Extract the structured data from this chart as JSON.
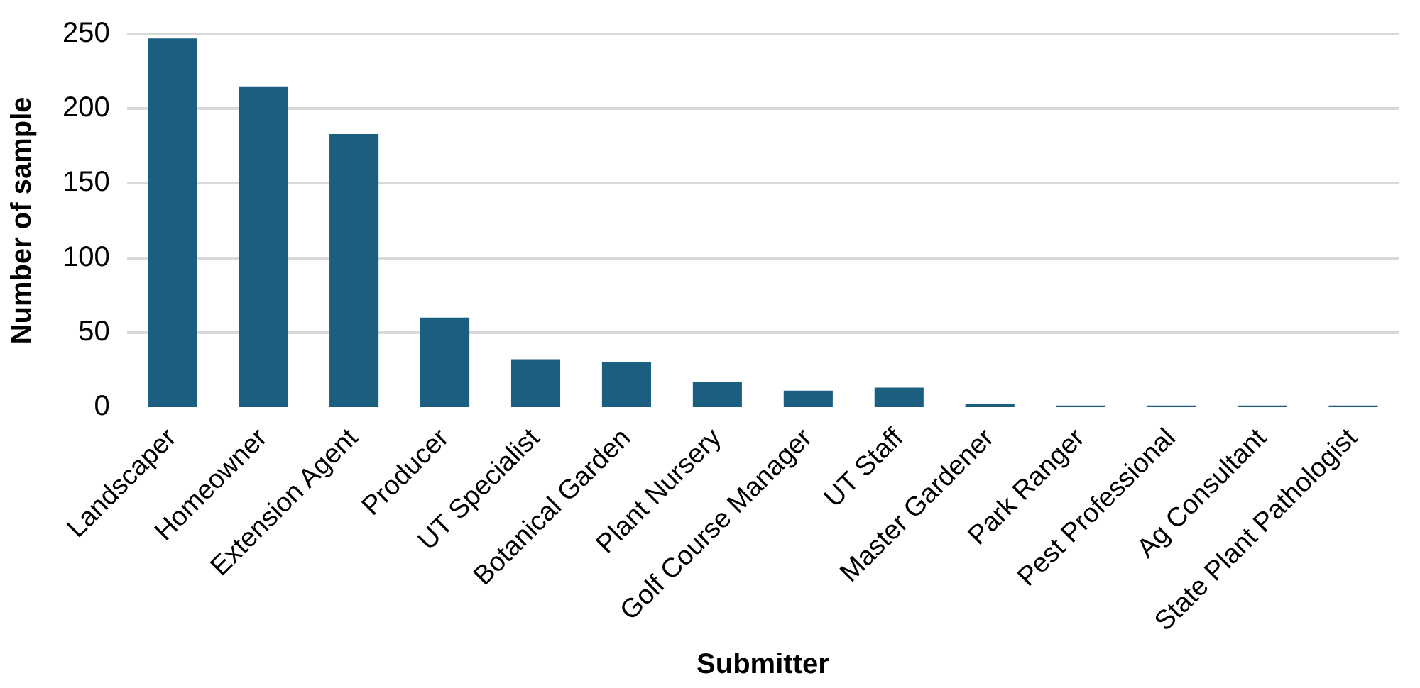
{
  "chart_data": {
    "type": "bar",
    "xlabel": "Submitter",
    "ylabel": "Number of sample",
    "categories": [
      "Landscaper",
      "Homeowner",
      "Extension Agent",
      "Producer",
      "UT Specialist",
      "Botanical Garden",
      "Plant Nursery",
      "Golf Course Manager",
      "UT Staff",
      "Master Gardener",
      "Park Ranger",
      "Pest Professional",
      "Ag Consultant",
      "State Plant Pathologist"
    ],
    "values": [
      247,
      215,
      183,
      60,
      32,
      30,
      17,
      11,
      13,
      2,
      1,
      1,
      1,
      1
    ],
    "color": "#1b5e80",
    "ylim": [
      0,
      250
    ],
    "yticks": [
      0,
      50,
      100,
      150,
      200,
      250
    ],
    "grid": "y",
    "legend": false
  }
}
